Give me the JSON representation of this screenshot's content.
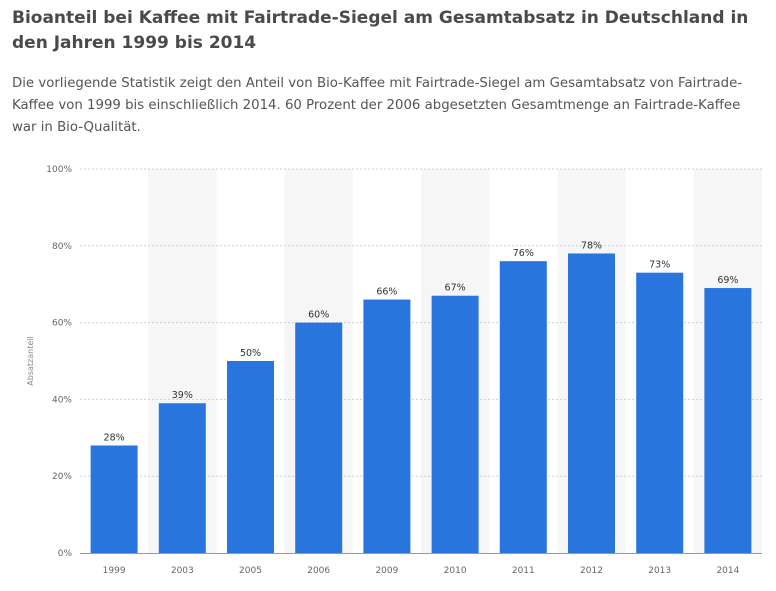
{
  "title": "Bioanteil bei Kaffee mit Fairtrade-Siegel am Gesamtabsatz in Deutschland in den Jahren 1999 bis 2014",
  "description": "Die vorliegende Statistik zeigt den Anteil von Bio-Kaffee mit Fairtrade-Siegel am Gesamtabsatz von Fairtrade-Kaffee von 1999 bis einschließlich 2014. 60 Prozent der 2006 abgesetzten Gesamtmenge an Fairtrade-Kaffee war in Bio-Qualität.",
  "colors": {
    "bar": "#2876dd",
    "band": "#f6f6f6",
    "grid": "#cfcfcf"
  },
  "chart_data": {
    "type": "bar",
    "title": "",
    "xlabel": "",
    "ylabel": "Absatzanteil",
    "categories": [
      "1999",
      "2003",
      "2005",
      "2006",
      "2009",
      "2010",
      "2011",
      "2012",
      "2013",
      "2014"
    ],
    "values": [
      28,
      39,
      50,
      60,
      66,
      67,
      76,
      78,
      73,
      69
    ],
    "value_labels": [
      "28%",
      "39%",
      "50%",
      "60%",
      "66%",
      "67%",
      "76%",
      "78%",
      "73%",
      "69%"
    ],
    "ylim": [
      0,
      100
    ],
    "yticks": [
      0,
      20,
      40,
      60,
      80,
      100
    ],
    "ytick_labels": [
      "0%",
      "20%",
      "40%",
      "60%",
      "80%",
      "100%"
    ],
    "grid": true,
    "legend": "none"
  }
}
